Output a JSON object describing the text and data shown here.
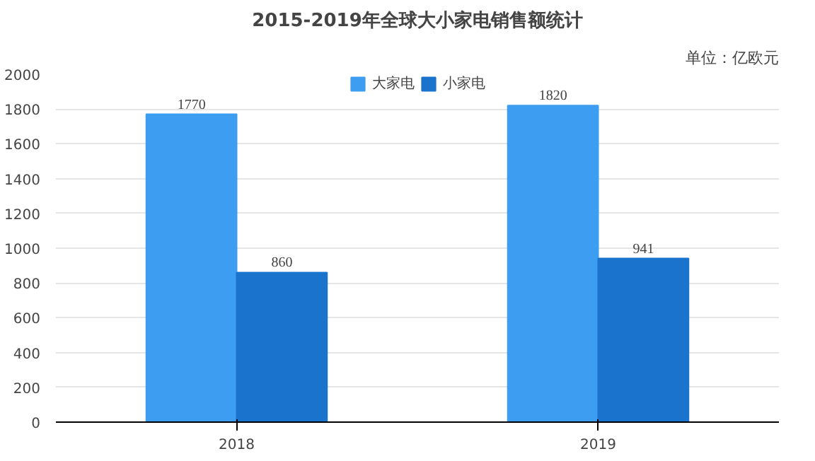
{
  "chart_data": {
    "type": "bar",
    "title": "2015-2019年全球大小家电销售额统计",
    "categories": [
      "2018",
      "2019"
    ],
    "series": [
      {
        "name": "大家电",
        "color": "#3d9df0",
        "values": [
          1770,
          1820
        ]
      },
      {
        "name": "小家电",
        "color": "#1a73cc",
        "values": [
          860,
          941
        ]
      }
    ],
    "ylim": [
      0,
      2000
    ],
    "yticks": [
      0,
      200,
      400,
      600,
      800,
      1000,
      1200,
      1400,
      1600,
      1800,
      2000
    ],
    "grid": "y",
    "legend": "top",
    "data_labels": true,
    "annotations": [
      "单位：亿欧元"
    ]
  }
}
